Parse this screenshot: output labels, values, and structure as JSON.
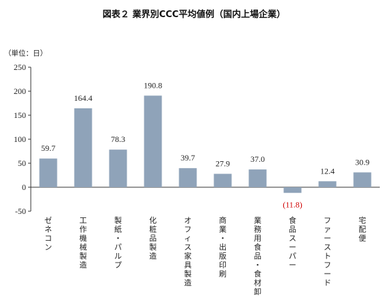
{
  "title": "図表２ 業界別CCC平均値例（国内上場企業）",
  "unit_label": "（単位：日）",
  "colors": {
    "bar": "#8fa3b9",
    "negative_label": "#d00000",
    "label": "#222222",
    "axis": "#333333"
  },
  "chart_data": {
    "type": "bar",
    "title": "図表２ 業界別CCC平均値例（国内上場企業）",
    "ylabel": "（単位：日）",
    "xlabel": "",
    "ylim": [
      -50,
      250
    ],
    "yticks": [
      250,
      200,
      150,
      100,
      50,
      0,
      -50
    ],
    "ytick_labels": [
      "250",
      "200",
      "150",
      "100",
      "50",
      "0",
      "-50"
    ],
    "grid": false,
    "legend": "none",
    "categories": [
      "ゼネコン",
      "工作機械製造",
      "製紙・パルプ",
      "化粧品製造",
      "オフィス家具製造",
      "商業・出版印刷",
      "業務用食品・食材卸",
      "食品スーパー",
      "ファーストフード",
      "宅配便"
    ],
    "values": [
      59.7,
      164.4,
      78.3,
      190.8,
      39.7,
      27.9,
      37.0,
      -11.8,
      12.4,
      30.9
    ],
    "data_labels": [
      "59.7",
      "164.4",
      "78.3",
      "190.8",
      "39.7",
      "27.9",
      "37.0",
      "(11.8)",
      "12.4",
      "30.9"
    ]
  }
}
